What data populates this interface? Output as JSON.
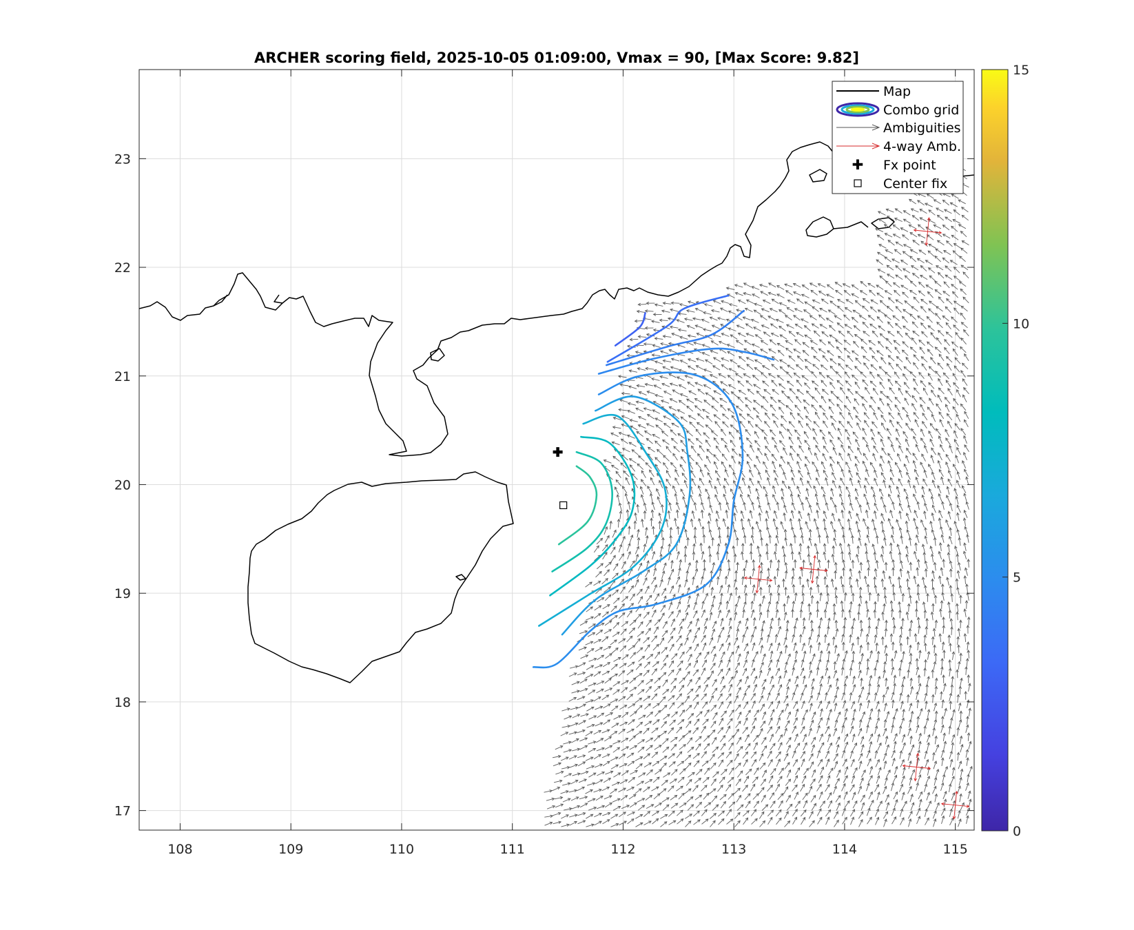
{
  "chart_data": {
    "type": "map-contour-quiver",
    "title": "ARCHER scoring field, 2025-10-05 01:09:00, Vmax = 90, [Max Score: 9.82]",
    "xlim": [
      107.63,
      115.17
    ],
    "ylim": [
      16.82,
      23.82
    ],
    "xticks": [
      108,
      109,
      110,
      111,
      112,
      113,
      114,
      115
    ],
    "yticks": [
      17,
      18,
      19,
      20,
      21,
      22,
      23
    ],
    "grid": true,
    "colorbar": {
      "limits": [
        0,
        15
      ],
      "ticks": [
        0,
        5,
        10,
        15
      ],
      "colormap": "parula"
    },
    "legend": {
      "location": "top-right",
      "entries": [
        {
          "label": "Map",
          "symbol": "line-black"
        },
        {
          "label": "Combo grid",
          "symbol": "contour-ellipse"
        },
        {
          "label": "Ambiguities",
          "symbol": "arrow-gray"
        },
        {
          "label": "4-way Amb.",
          "symbol": "arrow-red"
        },
        {
          "label": "Fx point",
          "symbol": "plus-black"
        },
        {
          "label": "Center fix",
          "symbol": "square-open"
        }
      ]
    },
    "fx_point": {
      "lon": 111.41,
      "lat": 20.3
    },
    "center_fix": {
      "lon": 111.46,
      "lat": 19.81
    },
    "vortex_center": {
      "lon": 111.5,
      "lat": 19.85
    },
    "contours": [
      {
        "level": 9.8,
        "points": [
          [
            111.58,
            20.17
          ],
          [
            111.7,
            20.07
          ],
          [
            111.76,
            19.9
          ],
          [
            111.68,
            19.66
          ],
          [
            111.42,
            19.45
          ]
        ]
      },
      {
        "level": 9.0,
        "points": [
          [
            111.58,
            20.3
          ],
          [
            111.8,
            20.2
          ],
          [
            111.9,
            19.95
          ],
          [
            111.85,
            19.65
          ],
          [
            111.68,
            19.42
          ],
          [
            111.36,
            19.2
          ]
        ]
      },
      {
        "level": 8.0,
        "points": [
          [
            111.62,
            20.44
          ],
          [
            111.88,
            20.38
          ],
          [
            112.08,
            20.07
          ],
          [
            112.08,
            19.75
          ],
          [
            111.92,
            19.48
          ],
          [
            111.7,
            19.25
          ],
          [
            111.34,
            18.98
          ]
        ]
      },
      {
        "level": 7.0,
        "points": [
          [
            111.64,
            20.56
          ],
          [
            111.95,
            20.63
          ],
          [
            112.22,
            20.27
          ],
          [
            112.38,
            19.95
          ],
          [
            112.35,
            19.6
          ],
          [
            112.1,
            19.25
          ],
          [
            111.68,
            18.98
          ],
          [
            111.24,
            18.7
          ]
        ]
      },
      {
        "level": 6.0,
        "points": [
          [
            111.75,
            20.68
          ],
          [
            112.1,
            20.81
          ],
          [
            112.5,
            20.58
          ],
          [
            112.58,
            20.3
          ],
          [
            112.6,
            19.9
          ],
          [
            112.48,
            19.45
          ],
          [
            112.18,
            19.2
          ],
          [
            111.75,
            18.94
          ],
          [
            111.45,
            18.62
          ]
        ]
      },
      {
        "level": 5.0,
        "points": [
          [
            111.78,
            20.83
          ],
          [
            112.15,
            21.0
          ],
          [
            112.65,
            21.01
          ],
          [
            112.98,
            20.75
          ],
          [
            113.08,
            20.27
          ],
          [
            113.0,
            19.85
          ],
          [
            112.95,
            19.45
          ],
          [
            112.75,
            19.08
          ],
          [
            112.3,
            18.9
          ],
          [
            111.95,
            18.83
          ],
          [
            111.7,
            18.65
          ],
          [
            111.4,
            18.35
          ],
          [
            111.19,
            18.32
          ]
        ]
      },
      {
        "level": 4.7,
        "points": [
          [
            111.78,
            21.02
          ],
          [
            112.28,
            21.16
          ],
          [
            112.8,
            21.25
          ],
          [
            113.1,
            21.22
          ],
          [
            113.36,
            21.15
          ]
        ]
      },
      {
        "level": 4.3,
        "points": [
          [
            111.85,
            21.1
          ],
          [
            112.4,
            21.27
          ],
          [
            112.8,
            21.38
          ],
          [
            113.09,
            21.6
          ]
        ]
      },
      {
        "level": 3.6,
        "points": [
          [
            111.86,
            21.13
          ],
          [
            112.4,
            21.46
          ],
          [
            112.55,
            21.62
          ],
          [
            112.95,
            21.74
          ]
        ]
      },
      {
        "level": 3.0,
        "points": [
          [
            111.93,
            21.28
          ],
          [
            112.15,
            21.45
          ],
          [
            112.2,
            21.58
          ]
        ]
      }
    ],
    "four_way_ambiguities": [
      {
        "lon": 113.22,
        "lat": 19.13
      },
      {
        "lon": 113.72,
        "lat": 19.22
      },
      {
        "lon": 114.75,
        "lat": 22.33
      },
      {
        "lon": 114.65,
        "lat": 17.4
      },
      {
        "lon": 115.0,
        "lat": 17.05
      }
    ]
  }
}
